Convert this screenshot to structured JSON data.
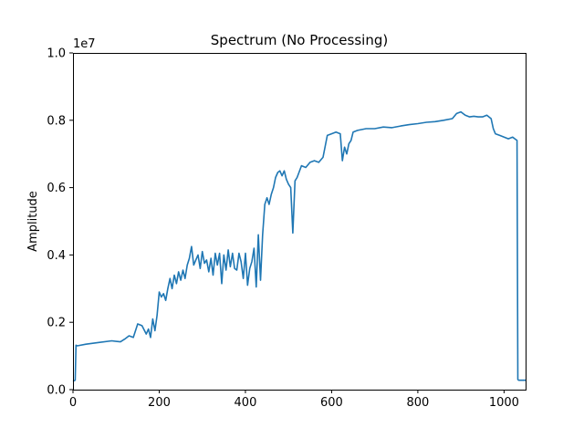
{
  "chart_data": {
    "type": "line",
    "title": "Spectrum (No Processing)",
    "xlabel": "",
    "ylabel": "Amplitude",
    "y_scale_label": "1e7",
    "xlim": [
      0,
      1050
    ],
    "ylim": [
      0,
      10000000
    ],
    "grid": false,
    "xticks": [
      0,
      200,
      400,
      600,
      800,
      1000
    ],
    "xtick_labels": [
      "0",
      "200",
      "400",
      "600",
      "800",
      "1000"
    ],
    "yticks": [
      0,
      2000000,
      4000000,
      6000000,
      8000000,
      10000000
    ],
    "ytick_labels": [
      "0.0",
      "0.2",
      "0.4",
      "0.6",
      "0.8",
      "1.0"
    ],
    "series": [
      {
        "color": "#1f77b4",
        "x": [
          0,
          5,
          7,
          10,
          30,
          60,
          90,
          110,
          120,
          130,
          140,
          150,
          160,
          170,
          175,
          180,
          185,
          190,
          195,
          200,
          205,
          210,
          215,
          220,
          225,
          230,
          235,
          240,
          245,
          250,
          255,
          260,
          265,
          270,
          275,
          280,
          285,
          290,
          295,
          300,
          305,
          310,
          315,
          320,
          325,
          330,
          335,
          340,
          345,
          350,
          355,
          360,
          365,
          370,
          375,
          380,
          385,
          390,
          395,
          400,
          405,
          410,
          415,
          420,
          425,
          430,
          435,
          440,
          445,
          450,
          455,
          460,
          465,
          470,
          475,
          480,
          485,
          490,
          495,
          500,
          505,
          510,
          515,
          520,
          530,
          540,
          550,
          560,
          570,
          580,
          590,
          600,
          610,
          620,
          625,
          630,
          635,
          640,
          645,
          650,
          660,
          680,
          700,
          720,
          740,
          760,
          780,
          800,
          820,
          840,
          860,
          880,
          890,
          900,
          910,
          920,
          930,
          940,
          950,
          960,
          970,
          975,
          980,
          990,
          1000,
          1010,
          1020,
          1025,
          1030,
          1032,
          1034,
          1040,
          1050
        ],
        "values": [
          250000,
          280000,
          1320000,
          1300000,
          1350000,
          1400000,
          1450000,
          1420000,
          1500000,
          1600000,
          1550000,
          1950000,
          1900000,
          1650000,
          1800000,
          1550000,
          2100000,
          1750000,
          2200000,
          2900000,
          2750000,
          2850000,
          2650000,
          3000000,
          3300000,
          3000000,
          3400000,
          3150000,
          3500000,
          3250000,
          3550000,
          3300000,
          3700000,
          3900000,
          4250000,
          3700000,
          3850000,
          4000000,
          3600000,
          4100000,
          3750000,
          3850000,
          3500000,
          3900000,
          3400000,
          4050000,
          3700000,
          4050000,
          3150000,
          4000000,
          3550000,
          4150000,
          3650000,
          4050000,
          3600000,
          3550000,
          4050000,
          3800000,
          3300000,
          4050000,
          3100000,
          3600000,
          3800000,
          4200000,
          3050000,
          4600000,
          3250000,
          4600000,
          5500000,
          5700000,
          5500000,
          5800000,
          6000000,
          6300000,
          6450000,
          6500000,
          6350000,
          6500000,
          6250000,
          6100000,
          6000000,
          4650000,
          6200000,
          6300000,
          6650000,
          6600000,
          6750000,
          6800000,
          6750000,
          6900000,
          7550000,
          7600000,
          7650000,
          7600000,
          6800000,
          7200000,
          7000000,
          7300000,
          7400000,
          7650000,
          7700000,
          7750000,
          7750000,
          7800000,
          7780000,
          7830000,
          7870000,
          7900000,
          7940000,
          7960000,
          8000000,
          8050000,
          8200000,
          8250000,
          8150000,
          8100000,
          8120000,
          8100000,
          8100000,
          8150000,
          8050000,
          7750000,
          7600000,
          7550000,
          7500000,
          7450000,
          7500000,
          7450000,
          7400000,
          300000,
          280000,
          280000,
          280000
        ]
      }
    ]
  }
}
